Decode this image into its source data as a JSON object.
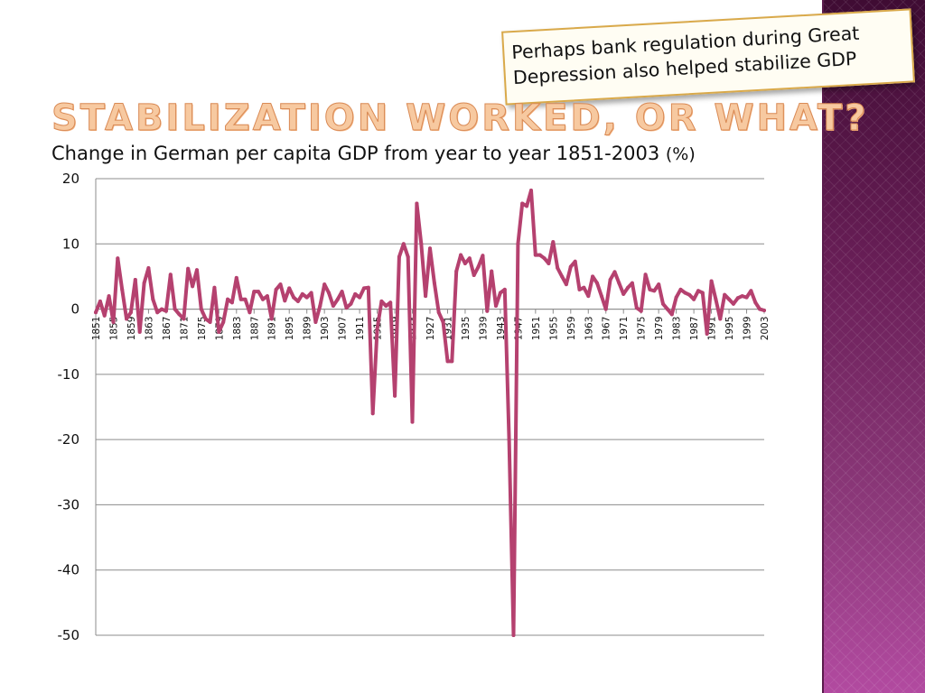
{
  "slide": {
    "title": "Stabilization worked, or what?",
    "callout": "Perhaps bank regulation during Great Depression also helped stabilize GDP"
  },
  "colors": {
    "series": "#b5416f",
    "title": "#f7c9a0",
    "side_band": "#6a1f58",
    "callout_border": "#d9a94a"
  },
  "chart_data": {
    "type": "line",
    "title": "Change in German per capita GDP from year to year 1851-2003",
    "unit": "(%)",
    "xlabel": "",
    "ylabel": "",
    "xlim": [
      1851,
      2003
    ],
    "ylim": [
      -50,
      20
    ],
    "yticks": [
      20,
      10,
      0,
      -10,
      -20,
      -30,
      -40,
      -50
    ],
    "xtick_labels": [
      "1851",
      "1855",
      "1859",
      "1863",
      "1867",
      "1871",
      "1875",
      "1879",
      "1883",
      "1887",
      "1891",
      "1895",
      "1899",
      "1903",
      "1907",
      "1911",
      "1915",
      "1919",
      "1923",
      "1927",
      "1931",
      "1935",
      "1939",
      "1943",
      "1947",
      "1951",
      "1955",
      "1959",
      "1963",
      "1967",
      "1971",
      "1975",
      "1979",
      "1983",
      "1987",
      "1991",
      "1995",
      "1999",
      "2003"
    ],
    "grid": true,
    "legend": "none",
    "series": [
      {
        "points": [
          [
            1851,
            -0.5
          ],
          [
            1852,
            1.2
          ],
          [
            1853,
            -1.0
          ],
          [
            1854,
            2.0
          ],
          [
            1855,
            -2.0
          ],
          [
            1856,
            7.8
          ],
          [
            1857,
            3.0
          ],
          [
            1858,
            -1.5
          ],
          [
            1859,
            -0.5
          ],
          [
            1860,
            4.5
          ],
          [
            1861,
            -3.5
          ],
          [
            1862,
            4.0
          ],
          [
            1863,
            6.3
          ],
          [
            1864,
            1.5
          ],
          [
            1865,
            -0.5
          ],
          [
            1866,
            0.0
          ],
          [
            1867,
            -0.3
          ],
          [
            1868,
            5.3
          ],
          [
            1869,
            0.0
          ],
          [
            1870,
            -0.8
          ],
          [
            1871,
            -1.5
          ],
          [
            1872,
            6.2
          ],
          [
            1873,
            3.5
          ],
          [
            1874,
            6.0
          ],
          [
            1875,
            0.0
          ],
          [
            1876,
            -1.5
          ],
          [
            1877,
            -2.0
          ],
          [
            1878,
            3.3
          ],
          [
            1879,
            -3.5
          ],
          [
            1880,
            -2.0
          ],
          [
            1881,
            1.5
          ],
          [
            1882,
            1.0
          ],
          [
            1883,
            4.8
          ],
          [
            1884,
            1.5
          ],
          [
            1885,
            1.5
          ],
          [
            1886,
            -0.5
          ],
          [
            1887,
            2.7
          ],
          [
            1888,
            2.7
          ],
          [
            1889,
            1.5
          ],
          [
            1890,
            2.0
          ],
          [
            1891,
            -1.5
          ],
          [
            1892,
            3.0
          ],
          [
            1893,
            3.8
          ],
          [
            1894,
            1.3
          ],
          [
            1895,
            3.2
          ],
          [
            1896,
            1.8
          ],
          [
            1897,
            1.2
          ],
          [
            1898,
            2.3
          ],
          [
            1899,
            1.8
          ],
          [
            1900,
            2.5
          ],
          [
            1901,
            -2.0
          ],
          [
            1902,
            0.5
          ],
          [
            1903,
            3.8
          ],
          [
            1904,
            2.5
          ],
          [
            1905,
            0.5
          ],
          [
            1906,
            1.5
          ],
          [
            1907,
            2.7
          ],
          [
            1908,
            0.2
          ],
          [
            1909,
            0.8
          ],
          [
            1910,
            2.3
          ],
          [
            1911,
            1.8
          ],
          [
            1912,
            3.2
          ],
          [
            1913,
            3.3
          ],
          [
            1914,
            -16.0
          ],
          [
            1915,
            -3.0
          ],
          [
            1916,
            1.2
          ],
          [
            1917,
            0.5
          ],
          [
            1918,
            1.0
          ],
          [
            1919,
            -13.3
          ],
          [
            1920,
            8.0
          ],
          [
            1921,
            10.0
          ],
          [
            1922,
            8.0
          ],
          [
            1923,
            -17.3
          ],
          [
            1924,
            16.2
          ],
          [
            1925,
            10.0
          ],
          [
            1926,
            2.0
          ],
          [
            1927,
            9.3
          ],
          [
            1928,
            4.0
          ],
          [
            1929,
            -0.5
          ],
          [
            1930,
            -2.0
          ],
          [
            1931,
            -8.0
          ],
          [
            1932,
            -8.0
          ],
          [
            1933,
            5.8
          ],
          [
            1934,
            8.3
          ],
          [
            1935,
            7.0
          ],
          [
            1936,
            7.8
          ],
          [
            1937,
            5.2
          ],
          [
            1938,
            6.5
          ],
          [
            1939,
            8.2
          ],
          [
            1940,
            -0.3
          ],
          [
            1941,
            5.8
          ],
          [
            1942,
            0.5
          ],
          [
            1943,
            2.5
          ],
          [
            1944,
            3.0
          ],
          [
            1945,
            -20.0
          ],
          [
            1946,
            -50.0
          ],
          [
            1947,
            10.0
          ],
          [
            1948,
            16.2
          ],
          [
            1949,
            15.8
          ],
          [
            1950,
            18.2
          ],
          [
            1951,
            8.3
          ],
          [
            1952,
            8.3
          ],
          [
            1953,
            7.8
          ],
          [
            1954,
            7.0
          ],
          [
            1955,
            10.3
          ],
          [
            1956,
            6.3
          ],
          [
            1957,
            5.0
          ],
          [
            1958,
            3.8
          ],
          [
            1959,
            6.5
          ],
          [
            1960,
            7.3
          ],
          [
            1961,
            3.0
          ],
          [
            1962,
            3.3
          ],
          [
            1963,
            2.0
          ],
          [
            1964,
            5.0
          ],
          [
            1965,
            4.0
          ],
          [
            1966,
            2.0
          ],
          [
            1967,
            0.0
          ],
          [
            1968,
            4.5
          ],
          [
            1969,
            5.7
          ],
          [
            1970,
            4.0
          ],
          [
            1971,
            2.3
          ],
          [
            1972,
            3.3
          ],
          [
            1973,
            4.0
          ],
          [
            1974,
            0.2
          ],
          [
            1975,
            -0.3
          ],
          [
            1976,
            5.3
          ],
          [
            1977,
            3.0
          ],
          [
            1978,
            2.8
          ],
          [
            1979,
            3.8
          ],
          [
            1980,
            0.8
          ],
          [
            1981,
            0.0
          ],
          [
            1982,
            -0.8
          ],
          [
            1983,
            1.8
          ],
          [
            1984,
            3.0
          ],
          [
            1985,
            2.5
          ],
          [
            1986,
            2.2
          ],
          [
            1987,
            1.5
          ],
          [
            1988,
            2.8
          ],
          [
            1989,
            2.5
          ],
          [
            1990,
            -3.8
          ],
          [
            1991,
            4.3
          ],
          [
            1992,
            1.5
          ],
          [
            1993,
            -1.5
          ],
          [
            1994,
            2.2
          ],
          [
            1995,
            1.5
          ],
          [
            1996,
            0.8
          ],
          [
            1997,
            1.7
          ],
          [
            1998,
            2.0
          ],
          [
            1999,
            1.8
          ],
          [
            2000,
            2.8
          ],
          [
            2001,
            1.0
          ],
          [
            2002,
            0.0
          ],
          [
            2003,
            -0.2
          ]
        ]
      }
    ]
  }
}
